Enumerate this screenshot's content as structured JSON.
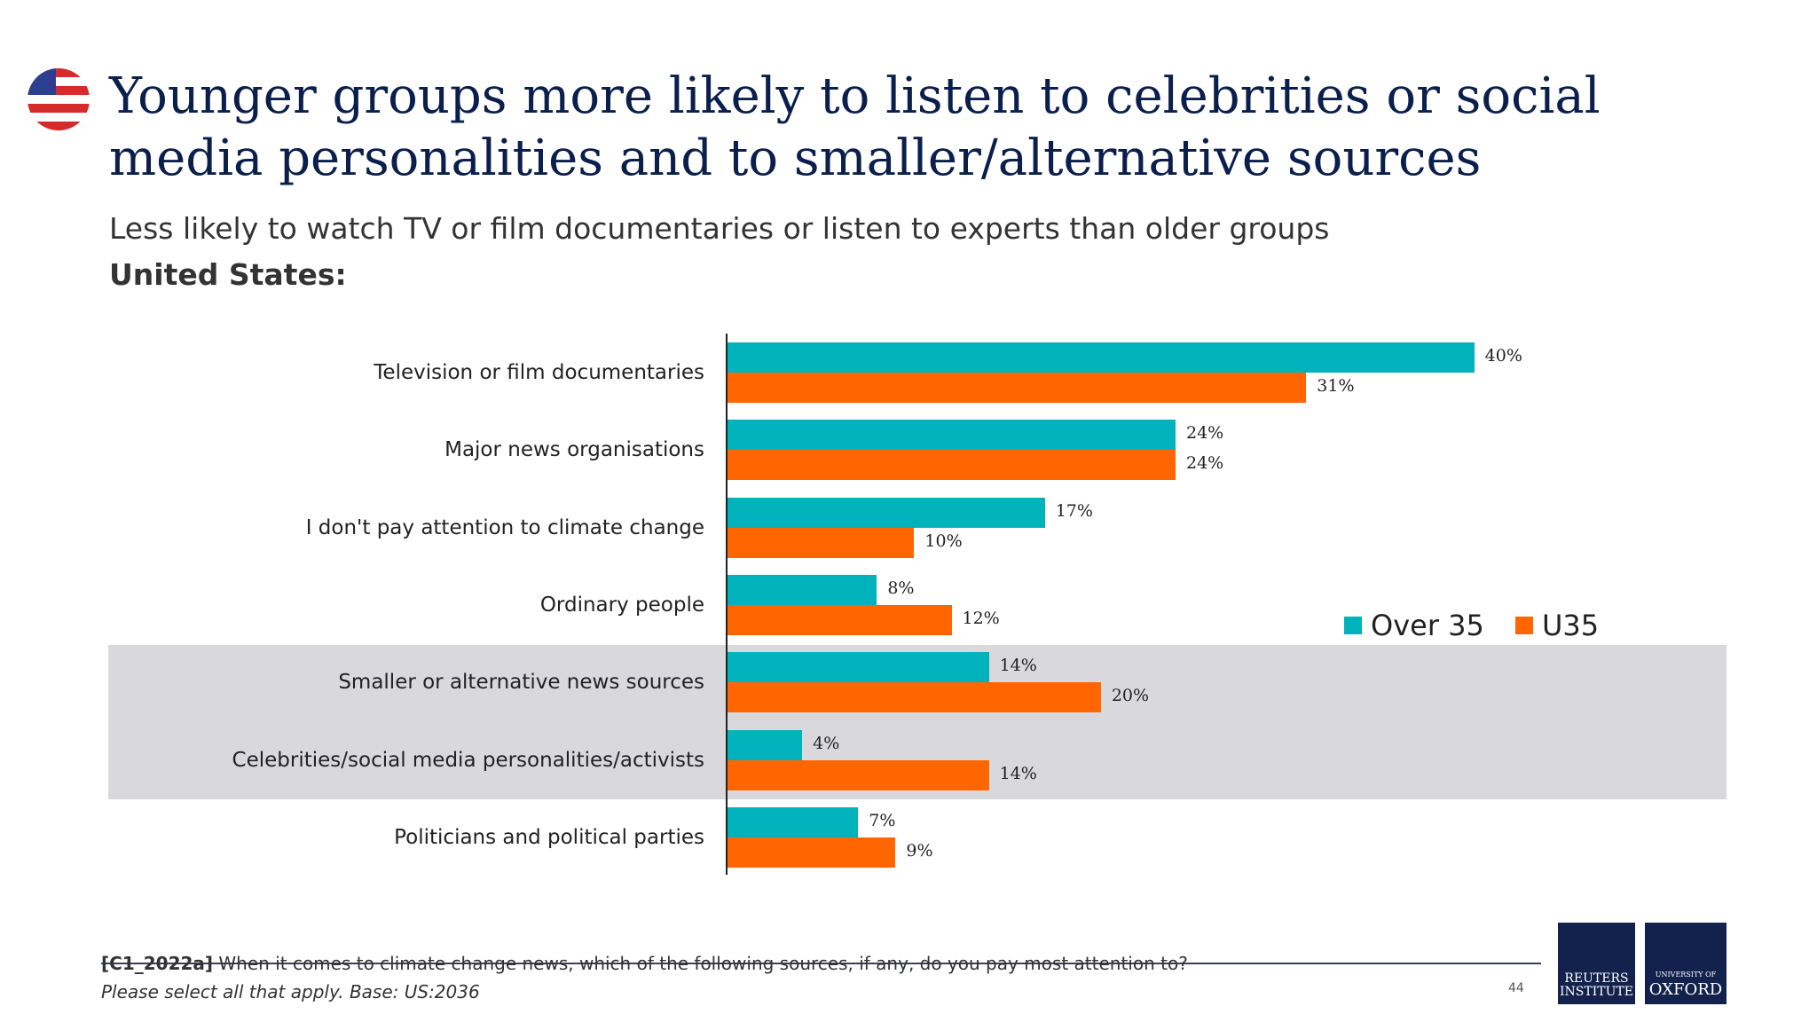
{
  "header": {
    "flag_icon": "us-flag-icon",
    "title": "Younger groups more likely to listen to celebrities or social media personalities and to smaller/alternative sources",
    "subtitle": "Less likely to watch TV or film documentaries or listen to experts than older groups",
    "country": "United States:"
  },
  "chart_data": {
    "type": "bar",
    "orientation": "horizontal",
    "categories": [
      "Television or film documentaries",
      "Major news organisations",
      "I don't pay attention to climate change",
      "Ordinary people",
      "Smaller or alternative news sources",
      "Celebrities/social media personalities/activists",
      "Politicians and political parties"
    ],
    "series": [
      {
        "name": "Over 35",
        "color": "#00b2bb",
        "values": [
          40,
          24,
          17,
          8,
          14,
          4,
          7
        ]
      },
      {
        "name": "U35",
        "color": "#ff6600",
        "values": [
          31,
          24,
          10,
          12,
          20,
          14,
          9
        ]
      }
    ],
    "value_suffix": "%",
    "xlim": [
      0,
      40
    ],
    "highlighted_categories": [
      "Smaller or alternative news sources",
      "Celebrities/social media personalities/activists"
    ],
    "highlight_color": "#d9d8dc",
    "legend_placement": "right",
    "grid": false
  },
  "footer": {
    "question_code": "[C1_2022a]",
    "question": " When it comes to climate change news, which of the following sources, if any, do you pay most attention to?",
    "note": "Please select all that apply. Base: US:2036",
    "page_number": "44",
    "logos": {
      "reuters_line1": "REUTERS",
      "reuters_line2": "INSTITUTE",
      "oxford_line1": "UNIVERSITY OF",
      "oxford_line2": "OXFORD"
    }
  }
}
